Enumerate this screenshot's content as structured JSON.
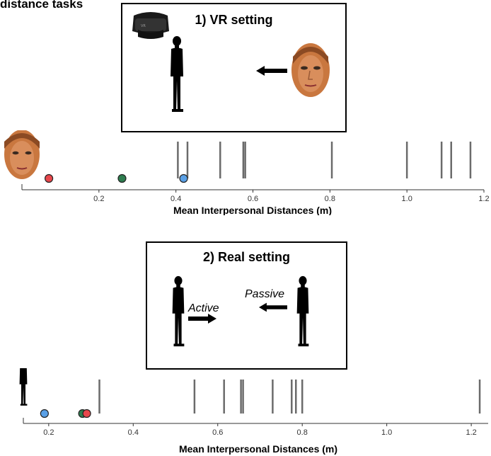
{
  "heading": "distance tasks",
  "panels": [
    {
      "title": "1) VR setting"
    },
    {
      "title": "2) Real setting",
      "labels": {
        "active": "Active",
        "passive": "Passive"
      }
    }
  ],
  "colors": {
    "red": "#e8474c",
    "green": "#2e7d4f",
    "blue": "#5aa0e6",
    "tick": "#6b6b6b"
  },
  "icons": [
    "vr-headset-icon",
    "human-silhouette-icon",
    "face-photo-icon",
    "arrow-left-icon",
    "arrow-right-icon"
  ],
  "chart_data": [
    {
      "type": "scatter",
      "title": "",
      "xlabel": "Mean Interpersonal Distances (m)",
      "ylabel": "",
      "xlim": [
        0,
        1.2
      ],
      "xticks": [
        "0.2",
        "0.4",
        "0.6",
        "0.8",
        "1.0",
        "1.2"
      ],
      "xtick_values": [
        0.2,
        0.4,
        0.6,
        0.8,
        1.0,
        1.2
      ],
      "rug_lines": [
        0.405,
        0.43,
        0.515,
        0.575,
        0.58,
        0.805,
        1.0,
        1.09,
        1.115,
        1.165
      ],
      "points": [
        {
          "color": "red",
          "x": 0.07
        },
        {
          "color": "green",
          "x": 0.26
        },
        {
          "color": "blue",
          "x": 0.42
        }
      ],
      "grid": false
    },
    {
      "type": "scatter",
      "title": "",
      "xlabel": "Mean Interpersonal Distances (m)",
      "ylabel": "",
      "xlim": [
        0.14,
        1.24
      ],
      "xticks": [
        "0.2",
        "0.4",
        "0.6",
        "0.8",
        "1.0",
        "1.2"
      ],
      "xtick_values": [
        0.2,
        0.4,
        0.6,
        0.8,
        1.0,
        1.2
      ],
      "rug_lines": [
        0.32,
        0.545,
        0.615,
        0.655,
        0.66,
        0.73,
        0.775,
        0.785,
        0.8,
        1.22
      ],
      "points": [
        {
          "color": "blue",
          "x": 0.19
        },
        {
          "color": "green",
          "x": 0.28
        },
        {
          "color": "red",
          "x": 0.29
        }
      ],
      "grid": false
    }
  ]
}
